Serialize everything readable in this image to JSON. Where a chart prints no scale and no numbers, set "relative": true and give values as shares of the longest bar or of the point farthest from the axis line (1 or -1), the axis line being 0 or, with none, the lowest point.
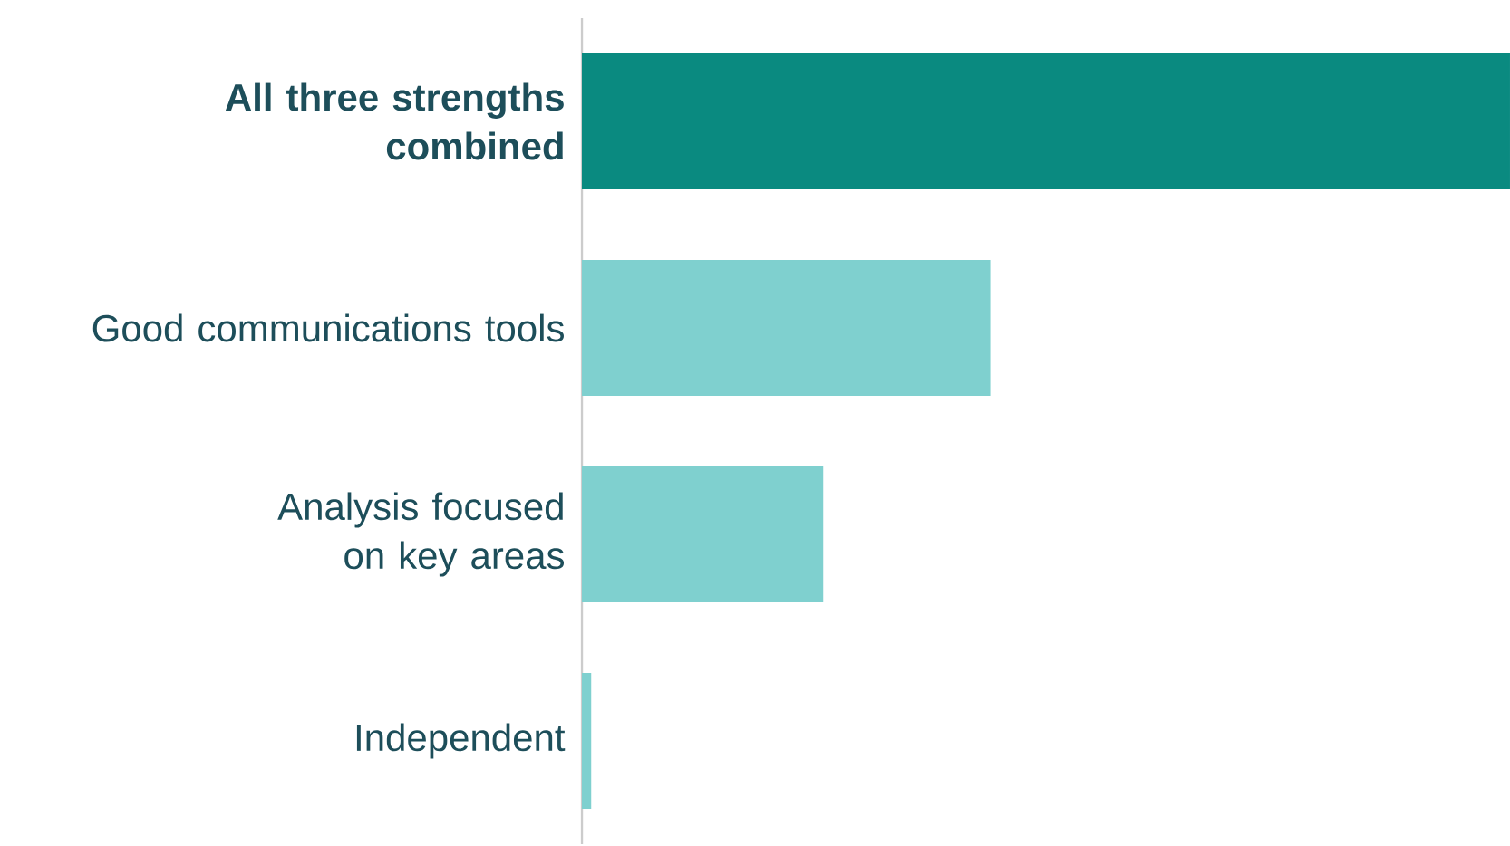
{
  "chart_data": {
    "type": "bar",
    "orientation": "horizontal",
    "relative": true,
    "categories": [
      "All three strengths combined",
      "Good communications tools",
      "Analysis focused on key areas",
      "Independent"
    ],
    "values": [
      1,
      0.44,
      0.26,
      0.01
    ],
    "colors": [
      "#0a8a80",
      "#7fd0cf",
      "#7fd0cf",
      "#7fd0cf"
    ]
  }
}
